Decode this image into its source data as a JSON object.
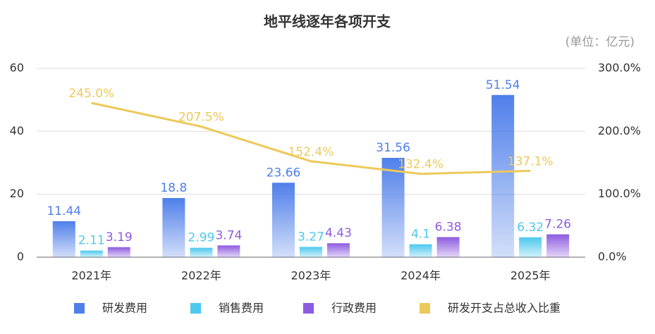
{
  "chart_data": {
    "type": "bar",
    "title": "地平线逐年各项开支",
    "subtitle": "(单位：亿元)",
    "categories": [
      "2021年",
      "2022年",
      "2023年",
      "2024年",
      "2025年"
    ],
    "series": [
      {
        "name": "研发费用",
        "color": "#4f7fea",
        "values": [
          11.44,
          18.8,
          23.66,
          31.56,
          51.54
        ]
      },
      {
        "name": "销售费用",
        "color": "#4dc8ee",
        "values": [
          2.11,
          2.99,
          3.27,
          4.1,
          6.32
        ]
      },
      {
        "name": "行政费用",
        "color": "#8e5be0",
        "values": [
          3.19,
          3.74,
          4.43,
          6.38,
          7.26
        ]
      },
      {
        "name": "研发开支占总收入比重",
        "color": "#ecc95a",
        "type": "line",
        "axis": "y2",
        "values": [
          245.0,
          207.5,
          152.4,
          132.4,
          137.1
        ],
        "value_labels": [
          "245.0%",
          "207.5%",
          "152.4%",
          "132.4%",
          "137.1%"
        ]
      }
    ],
    "ylim": [
      0,
      60
    ],
    "yticks": [
      0,
      20,
      40,
      60
    ],
    "y2lim": [
      0,
      300
    ],
    "y2ticks": [
      {
        "value": 0,
        "label": "0.0%"
      },
      {
        "value": 100,
        "label": "100.0%"
      },
      {
        "value": 200,
        "label": "200.0%"
      },
      {
        "value": 300,
        "label": "300.0%"
      }
    ],
    "grid": true,
    "legend": "bottom"
  }
}
